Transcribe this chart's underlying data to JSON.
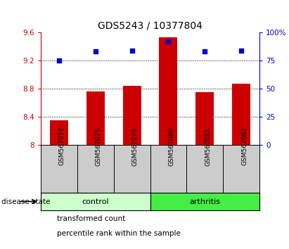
{
  "title": "GDS5243 / 10377804",
  "samples": [
    "GSM567074",
    "GSM567075",
    "GSM567076",
    "GSM567080",
    "GSM567081",
    "GSM567082"
  ],
  "bar_values": [
    8.35,
    8.76,
    8.84,
    9.53,
    8.75,
    8.87
  ],
  "percentile_values": [
    75,
    83,
    84,
    92,
    83,
    84
  ],
  "bar_color": "#cc0000",
  "dot_color": "#0000cc",
  "ylim_left": [
    8.0,
    9.6
  ],
  "ylim_right": [
    0,
    100
  ],
  "yticks_left": [
    8.0,
    8.4,
    8.8,
    9.2,
    9.6
  ],
  "ytick_labels_left": [
    "8",
    "8.4",
    "8.8",
    "9.2",
    "9.6"
  ],
  "yticks_right": [
    0,
    25,
    50,
    75,
    100
  ],
  "ytick_labels_right": [
    "0",
    "25",
    "50",
    "75",
    "100%"
  ],
  "hlines": [
    8.4,
    8.8,
    9.2
  ],
  "groups": [
    {
      "label": "control",
      "n": 3,
      "color": "#ccffcc"
    },
    {
      "label": "arthritis",
      "n": 3,
      "color": "#44ee44"
    }
  ],
  "disease_state_label": "disease state",
  "legend_items": [
    {
      "label": "transformed count",
      "color": "#cc0000"
    },
    {
      "label": "percentile rank within the sample",
      "color": "#0000cc"
    }
  ],
  "bar_width": 0.5,
  "tick_label_color_left": "#cc0000",
  "tick_label_color_right": "#0000cc",
  "title_fontsize": 10,
  "tick_fontsize": 7.5,
  "label_fontsize": 7.5,
  "sample_fontsize": 6.5,
  "group_fontsize": 8
}
